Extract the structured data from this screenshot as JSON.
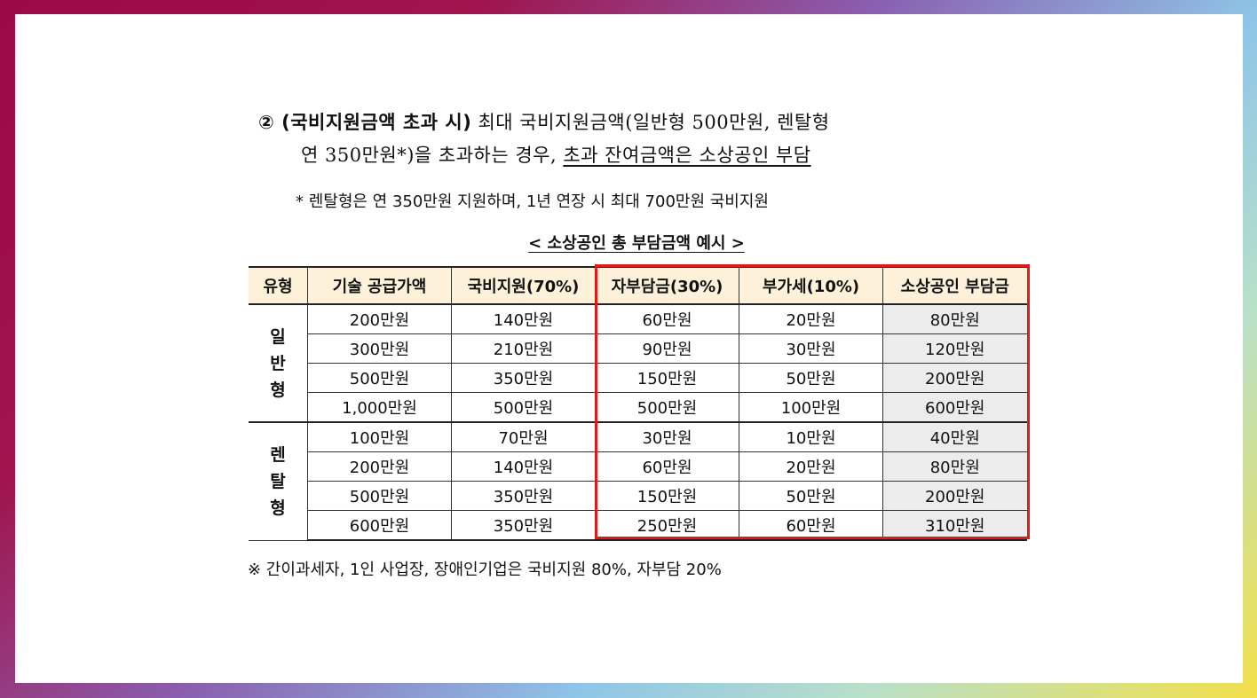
{
  "paragraph": {
    "lead": "② (국비지원금액 초과 시)",
    "line1_rest": " 최대 국비지원금액(일반형 500만원, 렌탈형",
    "line2_start": "연 350만원*)을 초과하는 경우, ",
    "line2_underlined": "초과 잔여금액은 소상공인 부담"
  },
  "note": "* 렌탈형은 연 350만원 지원하며, 1년 연장 시 최대 700만원 국비지원",
  "table": {
    "caption": "< 소상공인 총 부담금액 예시 >",
    "headers": [
      "유형",
      "기술 공급가액",
      "국비지원(70%)",
      "자부담금(30%)",
      "부가세(10%)",
      "소상공인 부담금"
    ],
    "groups": [
      {
        "type": "일\n반\n형",
        "rows": [
          [
            "200만원",
            "140만원",
            "60만원",
            "20만원",
            "80만원"
          ],
          [
            "300만원",
            "210만원",
            "90만원",
            "30만원",
            "120만원"
          ],
          [
            "500만원",
            "350만원",
            "150만원",
            "50만원",
            "200만원"
          ],
          [
            "1,000만원",
            "500만원",
            "500만원",
            "100만원",
            "600만원"
          ]
        ]
      },
      {
        "type": "렌\n탈\n형",
        "rows": [
          [
            "100만원",
            "70만원",
            "30만원",
            "10만원",
            "40만원"
          ],
          [
            "200만원",
            "140만원",
            "60만원",
            "20만원",
            "80만원"
          ],
          [
            "500만원",
            "350만원",
            "150만원",
            "50만원",
            "200만원"
          ],
          [
            "600만원",
            "350만원",
            "250만원",
            "60만원",
            "310만원"
          ]
        ]
      }
    ]
  },
  "footnote": "※ 간이과세자, 1인 사업장, 장애인기업은 국비지원 80%, 자부담 20%",
  "colors": {
    "header_bg": "#fdf2d9",
    "total_col_bg": "#ececec",
    "highlight_border": "#e01a1a"
  }
}
